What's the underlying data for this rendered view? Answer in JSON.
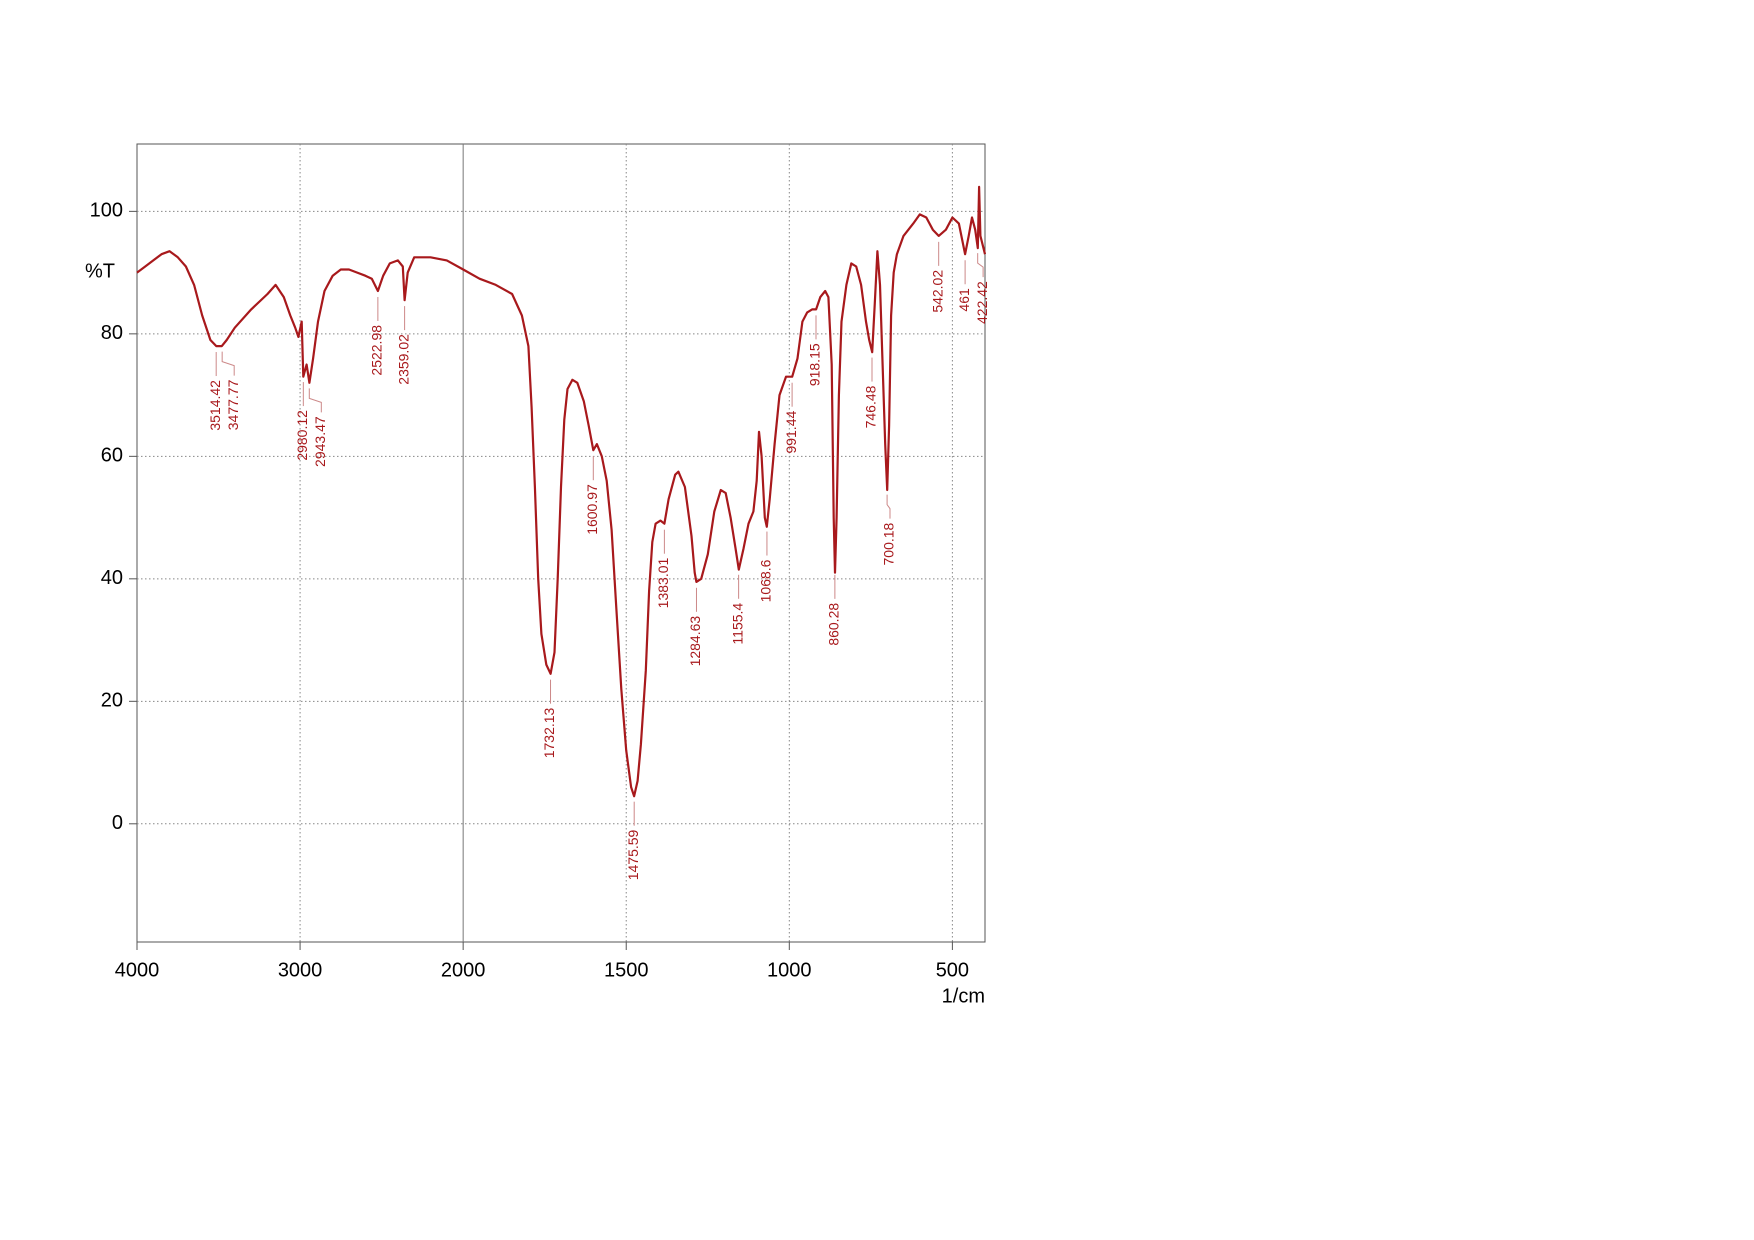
{
  "chart_data": {
    "type": "line",
    "xlabel": "1/cm",
    "ylabel": "%T",
    "xlim": [
      4000,
      400
    ],
    "xbreak": 2000,
    "xbreak_zoom": 2,
    "ylim": [
      -19.3,
      111
    ],
    "xticks": [
      4000,
      3000,
      2000,
      1500,
      1000,
      500
    ],
    "yticks": [
      0,
      20,
      40,
      60,
      80,
      100
    ],
    "grid": true,
    "color": "#a8191c",
    "x": [
      4000,
      3950,
      3900,
      3850,
      3800,
      3750,
      3700,
      3650,
      3600,
      3550,
      3514,
      3480,
      3450,
      3400,
      3300,
      3200,
      3150,
      3100,
      3060,
      3030,
      3010,
      2990,
      2980,
      2960,
      2943,
      2920,
      2890,
      2850,
      2800,
      2750,
      2700,
      2650,
      2600,
      2560,
      2523,
      2490,
      2450,
      2400,
      2370,
      2359,
      2340,
      2300,
      2200,
      2100,
      2000,
      1950,
      1900,
      1850,
      1820,
      1800,
      1790,
      1780,
      1770,
      1760,
      1745,
      1732,
      1720,
      1710,
      1700,
      1690,
      1680,
      1665,
      1650,
      1630,
      1615,
      1601,
      1590,
      1575,
      1560,
      1545,
      1530,
      1515,
      1500,
      1485,
      1476,
      1465,
      1455,
      1440,
      1430,
      1420,
      1410,
      1395,
      1383,
      1370,
      1350,
      1340,
      1320,
      1300,
      1290,
      1285,
      1270,
      1250,
      1230,
      1210,
      1195,
      1180,
      1165,
      1155,
      1140,
      1125,
      1110,
      1100,
      1093,
      1085,
      1075,
      1069,
      1060,
      1045,
      1030,
      1010,
      991,
      975,
      960,
      945,
      930,
      918,
      905,
      890,
      880,
      870,
      864,
      860,
      855,
      848,
      840,
      825,
      810,
      795,
      780,
      765,
      755,
      746,
      738,
      730,
      722,
      714,
      706,
      700,
      694,
      688,
      680,
      670,
      650,
      620,
      600,
      580,
      560,
      542,
      520,
      500,
      480,
      461,
      450,
      440,
      430,
      422,
      418,
      414,
      400
    ],
    "y": [
      90,
      91,
      92,
      93,
      93.5,
      92.5,
      91,
      88,
      83,
      79,
      78,
      78,
      79,
      81,
      84,
      86.5,
      88,
      86,
      83,
      81,
      79.5,
      82,
      73,
      75,
      72,
      76,
      82,
      87,
      89.5,
      90.5,
      90.5,
      90,
      89.5,
      89,
      87,
      89.5,
      91.5,
      92,
      91,
      85.5,
      90,
      92.5,
      92.5,
      92,
      90.5,
      89,
      88,
      86.5,
      83,
      78,
      68,
      55,
      40,
      31,
      26,
      24.5,
      28,
      40,
      55,
      66,
      71,
      72.5,
      72,
      69,
      65,
      61,
      62,
      60,
      56,
      48,
      35,
      22,
      12,
      6,
      4.5,
      7,
      13,
      25,
      38,
      46,
      49,
      49.5,
      49,
      53,
      57,
      57.5,
      55,
      47,
      41,
      39.5,
      40,
      44,
      51,
      54.5,
      54,
      50,
      45,
      41.5,
      45,
      49,
      51,
      56,
      64,
      60,
      50,
      48.5,
      53,
      62,
      70,
      73,
      73,
      76,
      82,
      83.5,
      84,
      84,
      86,
      87,
      86,
      75,
      50,
      41,
      50,
      70,
      82,
      88,
      91.5,
      91,
      88,
      82,
      79,
      77,
      85,
      93.5,
      88,
      75,
      62,
      54.5,
      65,
      83,
      90,
      93,
      96,
      98,
      99.5,
      99,
      97,
      96,
      97,
      99,
      98,
      93,
      96,
      99,
      97,
      94,
      104,
      96,
      93
    ],
    "peaks": [
      3514.42,
      3477.77,
      2980.12,
      2943.47,
      2522.98,
      2359.02,
      1732.13,
      1600.97,
      1475.59,
      1383.01,
      1284.63,
      1155.4,
      1068.6,
      991.44,
      918.15,
      860.28,
      746.48,
      700.18,
      542.02,
      461.0,
      422.42
    ]
  }
}
